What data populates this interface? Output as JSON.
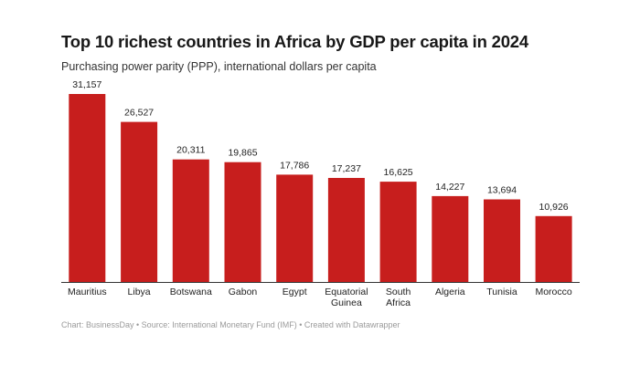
{
  "chart_data": {
    "type": "bar",
    "title": "Top 10 richest countries in Africa by GDP per capita in 2024",
    "subtitle": "Purchasing power parity (PPP), international dollars per capita",
    "categories": [
      "Mauritius",
      "Libya",
      "Botswana",
      "Gabon",
      "Egypt",
      "Equatorial Guinea",
      "South Africa",
      "Algeria",
      "Tunisia",
      "Morocco"
    ],
    "category_lines": [
      [
        "Mauritius"
      ],
      [
        "Libya"
      ],
      [
        "Botswana"
      ],
      [
        "Gabon"
      ],
      [
        "Egypt"
      ],
      [
        "Equatorial",
        "Guinea"
      ],
      [
        "South",
        "Africa"
      ],
      [
        "Algeria"
      ],
      [
        "Tunisia"
      ],
      [
        "Morocco"
      ]
    ],
    "values": [
      31157,
      26527,
      20311,
      19865,
      17786,
      17237,
      16625,
      14227,
      13694,
      10926
    ],
    "value_labels": [
      "31,157",
      "26,527",
      "20,311",
      "19,865",
      "17,786",
      "17,237",
      "16,625",
      "14,227",
      "13,694",
      "10,926"
    ],
    "ylim": [
      0,
      31157
    ],
    "grid": false,
    "legend": "none",
    "bar_color": "#c71e1d",
    "footer": "Chart: BusinessDay • Source: International Monetary Fund (IMF) • Created with Datawrapper"
  }
}
